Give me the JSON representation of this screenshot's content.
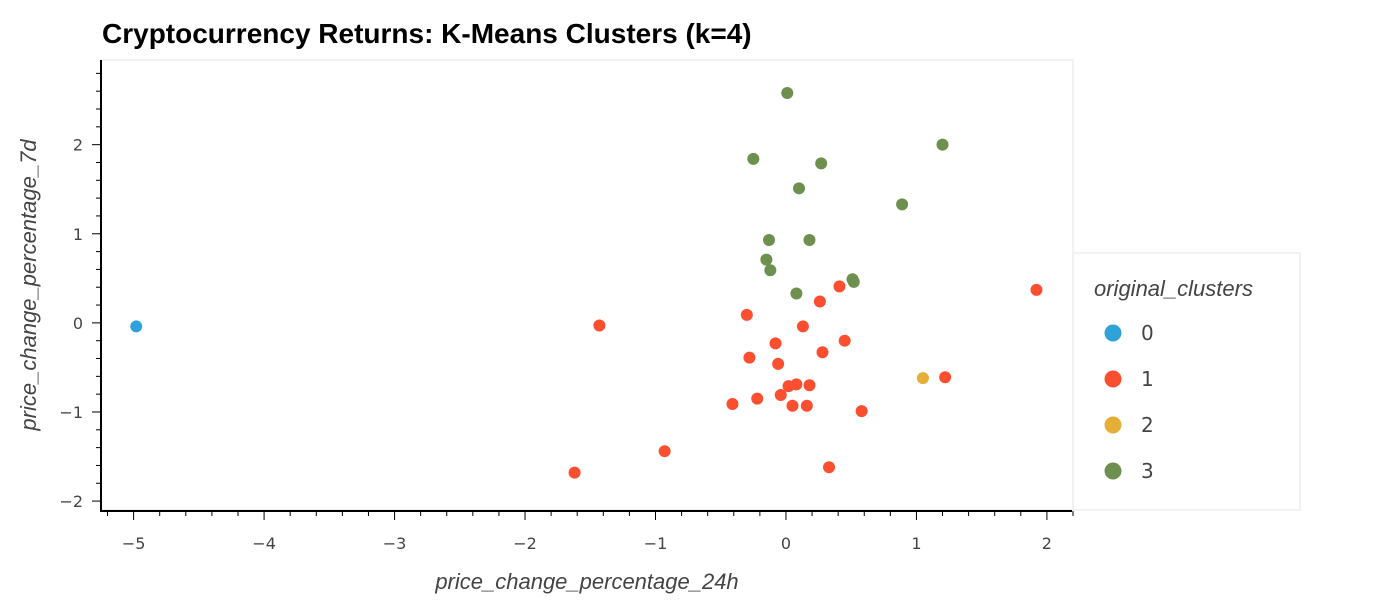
{
  "chart_data": {
    "type": "scatter",
    "title": "Cryptocurrency Returns: K-Means Clusters (k=4)",
    "xlabel": "price_change_percentage_24h",
    "ylabel": "price_change_percentage_7d",
    "xlim": [
      -5.25,
      2.2
    ],
    "ylim": [
      -2.1,
      2.95
    ],
    "xticks": [
      -5,
      -4,
      -3,
      -2,
      -1,
      0,
      1,
      2
    ],
    "xtick_labels": [
      "−5",
      "−4",
      "−3",
      "−2",
      "−1",
      "0",
      "1",
      "2"
    ],
    "yticks": [
      -2,
      -1,
      0,
      1,
      2
    ],
    "ytick_labels": [
      "−2",
      "−1",
      "0",
      "1",
      "2"
    ],
    "grid": false,
    "legend": {
      "title": "original_clusters",
      "placement": "right"
    },
    "series": [
      {
        "name": "0",
        "color": "#30a2da",
        "points": [
          [
            -4.98,
            -0.04
          ]
        ]
      },
      {
        "name": "1",
        "color": "#fc4f30",
        "points": [
          [
            -1.62,
            -1.68
          ],
          [
            -1.43,
            -0.03
          ],
          [
            -0.93,
            -1.44
          ],
          [
            -0.41,
            -0.91
          ],
          [
            -0.3,
            0.09
          ],
          [
            -0.28,
            -0.39
          ],
          [
            -0.22,
            -0.85
          ],
          [
            -0.08,
            -0.23
          ],
          [
            -0.06,
            -0.46
          ],
          [
            -0.04,
            -0.81
          ],
          [
            0.02,
            -0.71
          ],
          [
            0.05,
            -0.93
          ],
          [
            0.08,
            -0.69
          ],
          [
            0.13,
            -0.04
          ],
          [
            0.16,
            -0.93
          ],
          [
            0.18,
            -0.7
          ],
          [
            0.26,
            0.24
          ],
          [
            0.28,
            -0.33
          ],
          [
            0.33,
            -1.62
          ],
          [
            0.41,
            0.41
          ],
          [
            0.45,
            -0.2
          ],
          [
            0.58,
            -0.99
          ],
          [
            1.22,
            -0.61
          ],
          [
            1.92,
            0.37
          ]
        ]
      },
      {
        "name": "2",
        "color": "#e5ae38",
        "points": [
          [
            1.05,
            -0.62
          ]
        ]
      },
      {
        "name": "3",
        "color": "#6d904f",
        "points": [
          [
            0.01,
            2.58
          ],
          [
            -0.25,
            1.84
          ],
          [
            0.27,
            1.79
          ],
          [
            1.2,
            2.0
          ],
          [
            0.1,
            1.51
          ],
          [
            0.89,
            1.33
          ],
          [
            -0.13,
            0.93
          ],
          [
            0.18,
            0.93
          ],
          [
            -0.15,
            0.71
          ],
          [
            -0.12,
            0.59
          ],
          [
            0.08,
            0.33
          ],
          [
            0.51,
            0.49
          ],
          [
            0.52,
            0.46
          ]
        ]
      }
    ]
  }
}
